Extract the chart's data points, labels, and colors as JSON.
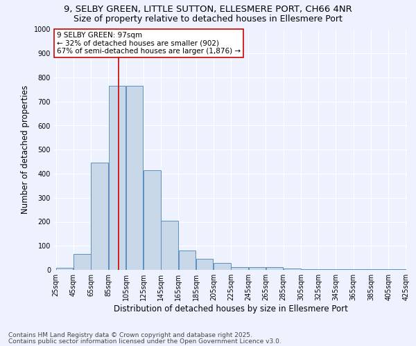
{
  "title_line1": "9, SELBY GREEN, LITTLE SUTTON, ELLESMERE PORT, CH66 4NR",
  "title_line2": "Size of property relative to detached houses in Ellesmere Port",
  "xlabel": "Distribution of detached houses by size in Ellesmere Port",
  "ylabel": "Number of detached properties",
  "bar_values": [
    10,
    65,
    445,
    765,
    765,
    415,
    205,
    80,
    45,
    28,
    12,
    12,
    12,
    5,
    2,
    2,
    2,
    2,
    2,
    2
  ],
  "bin_edges": [
    25,
    45,
    65,
    85,
    105,
    125,
    145,
    165,
    185,
    205,
    225,
    245,
    265,
    285,
    305,
    325,
    345,
    365,
    385,
    405,
    425
  ],
  "tick_labels": [
    "25sqm",
    "45sqm",
    "65sqm",
    "85sqm",
    "105sqm",
    "125sqm",
    "145sqm",
    "165sqm",
    "185sqm",
    "205sqm",
    "225sqm",
    "245sqm",
    "265sqm",
    "285sqm",
    "305sqm",
    "325sqm",
    "345sqm",
    "365sqm",
    "385sqm",
    "405sqm",
    "425sqm"
  ],
  "bar_color": "#c8d8e8",
  "bar_edge_color": "#5a8fc0",
  "property_line_x": 97,
  "annotation_label": "9 SELBY GREEN: 97sqm",
  "annotation_line1": "← 32% of detached houses are smaller (902)",
  "annotation_line2": "67% of semi-detached houses are larger (1,876) →",
  "ylim": [
    0,
    1000
  ],
  "yticks": [
    0,
    100,
    200,
    300,
    400,
    500,
    600,
    700,
    800,
    900,
    1000
  ],
  "background_color": "#eef2ff",
  "grid_color": "#ffffff",
  "footer_line1": "Contains HM Land Registry data © Crown copyright and database right 2025.",
  "footer_line2": "Contains public sector information licensed under the Open Government Licence v3.0.",
  "annotation_box_color": "#ffffff",
  "annotation_box_edge_color": "#cc0000",
  "red_line_color": "#cc0000",
  "title_fontsize": 9.5,
  "subtitle_fontsize": 9,
  "axis_label_fontsize": 8.5,
  "tick_fontsize": 7,
  "annotation_fontsize": 7.5,
  "footer_fontsize": 6.5
}
